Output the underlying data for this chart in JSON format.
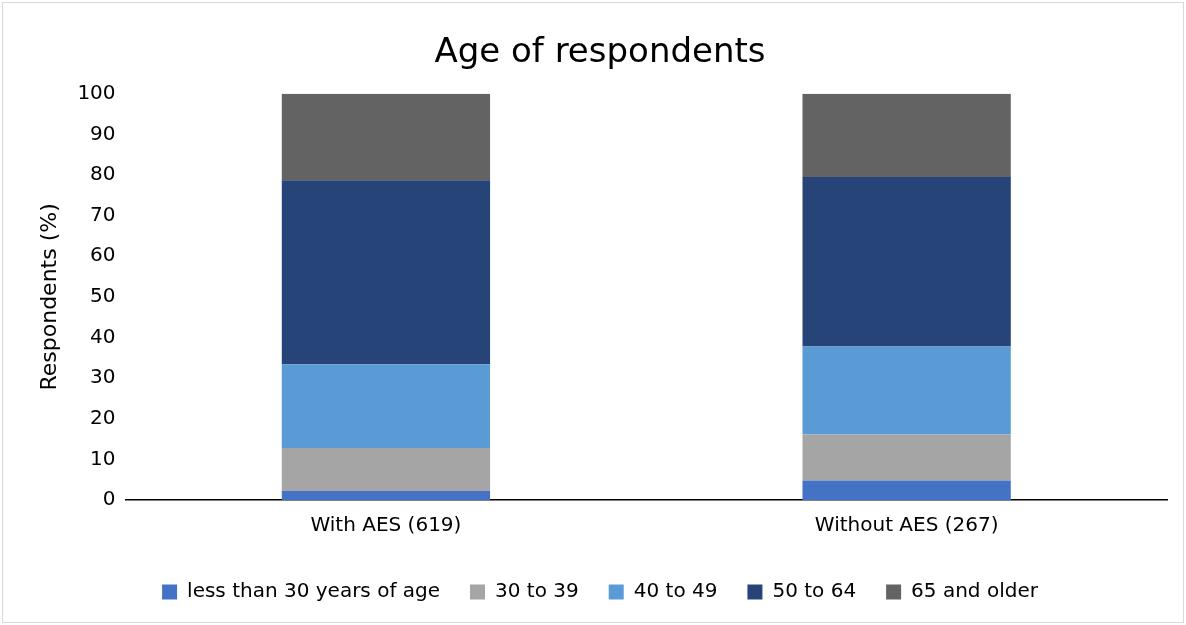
{
  "chart_data": {
    "type": "bar",
    "stacked": true,
    "title": "Age of respondents",
    "ylabel": "Respondents (%)",
    "categories": [
      "With AES (619)",
      "Without AES (267)"
    ],
    "series": [
      {
        "name": "less than 30 years of age",
        "color": "#4472c4",
        "values": [
          2.2,
          4.8
        ]
      },
      {
        "name": "30 to 39",
        "color": "#a5a5a5",
        "values": [
          10.6,
          11.3
        ]
      },
      {
        "name": "40 to 49",
        "color": "#5b9bd5",
        "values": [
          20.6,
          21.7
        ]
      },
      {
        "name": "50 to 64",
        "color": "#264478",
        "values": [
          45.3,
          41.7
        ]
      },
      {
        "name": "65 and older",
        "color": "#636363",
        "values": [
          21.3,
          20.5
        ]
      }
    ],
    "ylim": [
      0,
      100
    ],
    "yticks": [
      0,
      10,
      20,
      30,
      40,
      50,
      60,
      70,
      80,
      90,
      100
    ],
    "grid": false,
    "legend": "bottom"
  }
}
